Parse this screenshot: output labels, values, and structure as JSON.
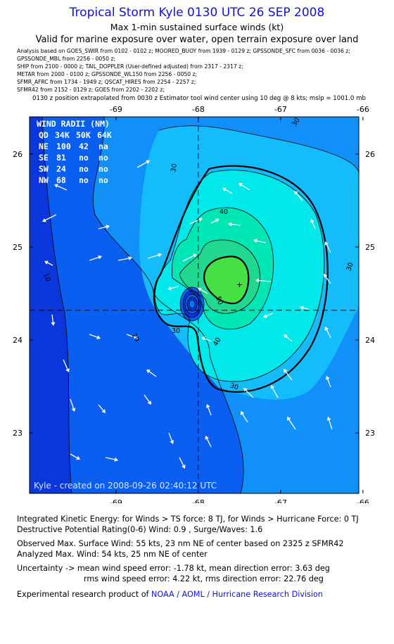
{
  "header": {
    "title": "Tropical Storm Kyle 0130 UTC 26 SEP 2008",
    "subtitle": "Max 1-min sustained surface winds (kt)",
    "valid": "Valid for marine exposure over water, open terrain exposure over land"
  },
  "analysis_lines": [
    "Analysis based on   GOES_SWIR from 0102 - 0102 z;   MOORED_BUOY from 1939 - 0129 z;   GPSSONDE_SFC from 0036 - 0036 z;",
    "GPSSONDE_MBL from  2256 - 0050 z;",
    "SHIP from 2100 - 0000 z;   TAIL_DOPPLER  (User-defined adjusted)  from 2317 - 2317 z;",
    "METAR from  2000 - 0100 z;   GPSSONDE_WL150 from  2256 - 0050 z;",
    "SFMR_AFRC from  1734 - 1949 z;   QSCAT_HIRES from 2254 - 2257 z;",
    "SFMR42 from  2152 - 0129 z;   GOES from  2202 - 2202 z;"
  ],
  "position_note": "0130 z position extrapolated from 0030 z Estimator tool wind center using 10 deg @ 8 kts; mslp = 1001.0 mb",
  "map": {
    "lon_ticks": [
      "-69",
      "-68",
      "-67",
      "-66"
    ],
    "lat_ticks": [
      "26",
      "25",
      "24",
      "23"
    ],
    "lon_range": [
      -70.05,
      -66.05
    ],
    "lat_range": [
      22.35,
      26.4
    ],
    "center": {
      "lon": -67.5,
      "lat": 24.6
    },
    "vortex": {
      "lon": -68.03,
      "lat": 24.33
    },
    "crosshair": {
      "lon": -68.0,
      "lat": 24.32
    },
    "credit": "Kyle - created on 2008-09-26 02:40:12 UTC",
    "contour_labels": [
      "30",
      "30",
      "30",
      "40",
      "50",
      "40",
      "30",
      "30",
      "20",
      "10"
    ],
    "colors": {
      "band_10": "#0a36dc",
      "band_20": "#0a5ef0",
      "band_30": "#1090f8",
      "band_30b": "#14bcfc",
      "band_40": "#00e8ea",
      "band_45": "#00e6b4",
      "band_50": "#20d890",
      "band_64": "#44e044",
      "vortex": "#0078ff",
      "label_blue": "#0a30d8",
      "arrow": "#ffffff"
    }
  },
  "wind_radii": {
    "title": "WIND RADII (NM)",
    "header": [
      "QD",
      "34K",
      "50K",
      "64K"
    ],
    "rows": [
      [
        "NE",
        "100",
        "42",
        "na"
      ],
      [
        "SE",
        "81",
        "no",
        "no"
      ],
      [
        "SW",
        "24",
        "no",
        "no"
      ],
      [
        "NW",
        "68",
        "no",
        "no"
      ]
    ]
  },
  "stats": {
    "ike": "Integrated Kinetic Energy:  for Winds > TS force: 8 TJ,  for Winds > Hurricane Force: 0 TJ",
    "dpr": "Destructive Potential Rating(0-6)   Wind: 0.9 , Surge/Waves: 1.6",
    "observed": "Observed Max. Surface Wind: 55 kts, 23 nm NE of center based on 2325 z SFMR42",
    "analyzed": "Analyzed Max. Wind: 54 kts, 25 nm NE of center",
    "uncertainty_1": "Uncertainty -> mean wind speed error:  -1.78 kt,   mean direction error: 3.63 deg",
    "uncertainty_2": "rms wind speed error: 4.22 kt,   rms direction error: 22.76 deg",
    "product_prefix": "Experimental research product of",
    "product_link": "NOAA / AOML / Hurricane Research Division"
  }
}
